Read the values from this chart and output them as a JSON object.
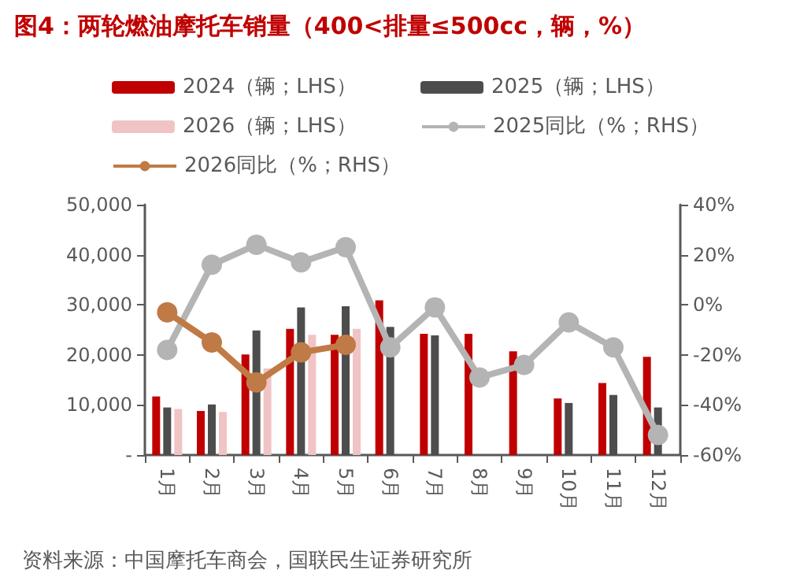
{
  "chart_data": {
    "type": "bar",
    "title": "图4：两轮燃油摩托车销量（400<排量≤500cc，辆，%）",
    "categories": [
      "1月",
      "2月",
      "3月",
      "4月",
      "5月",
      "6月",
      "7月",
      "8月",
      "9月",
      "10月",
      "11月",
      "12月"
    ],
    "series": [
      {
        "name": "2024（辆；LHS）",
        "color": "#c00000",
        "values": [
          11700,
          8800,
          20100,
          25200,
          24000,
          30900,
          24200,
          24200,
          20700,
          11300,
          14400,
          19600
        ]
      },
      {
        "name": "2025（辆；LHS）",
        "color": "#4d4d4d",
        "values": [
          9500,
          10100,
          24900,
          29500,
          29700,
          25600,
          23900,
          null,
          null,
          10400,
          12000,
          9500
        ]
      },
      {
        "name": "2026（辆；LHS）",
        "color": "#f0c4c4",
        "values": [
          9200,
          8600,
          17300,
          24000,
          25200,
          null,
          null,
          null,
          null,
          null,
          null,
          null
        ]
      },
      {
        "name": "2025同比（%；RHS）",
        "type": "line",
        "axis": "y2",
        "color": "#b4b4b4",
        "values": [
          -18,
          16,
          24,
          17,
          23,
          -17,
          -1,
          -29,
          -24,
          -7,
          -17,
          -52
        ]
      },
      {
        "name": "2026同比（%；RHS）",
        "type": "line",
        "axis": "y2",
        "color": "#c07a45",
        "values": [
          -3,
          -15,
          -31,
          -19,
          -16,
          null,
          null,
          null,
          null,
          null,
          null,
          null
        ]
      }
    ],
    "ylim": [
      0,
      50000
    ],
    "yticks": [
      {
        "value": 0,
        "label": "-"
      },
      {
        "value": 10000,
        "label": "10,000"
      },
      {
        "value": 20000,
        "label": "20,000"
      },
      {
        "value": 30000,
        "label": "30,000"
      },
      {
        "value": 40000,
        "label": "40,000"
      },
      {
        "value": 50000,
        "label": "50,000"
      }
    ],
    "y2lim": [
      -60,
      40
    ],
    "y2ticks": [
      {
        "value": -60,
        "label": "-60%"
      },
      {
        "value": -40,
        "label": "-40%"
      },
      {
        "value": -20,
        "label": "-20%"
      },
      {
        "value": 0,
        "label": "0%"
      },
      {
        "value": 20,
        "label": "20%"
      },
      {
        "value": 40,
        "label": "40%"
      }
    ],
    "marker": "circle",
    "grid": false,
    "legend": "top",
    "annotations": [
      "资料来源：中国摩托车商会，国联民生证券研究所"
    ]
  }
}
